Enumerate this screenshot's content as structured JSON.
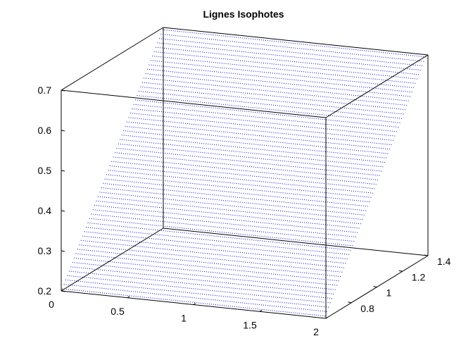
{
  "chart_data": {
    "type": "line",
    "title": "Lignes Isophotes",
    "xlabel": "",
    "ylabel": "",
    "zlabel": "",
    "xlim": [
      0,
      2
    ],
    "ylim": [
      0.6,
      1.4
    ],
    "zlim": [
      0.2,
      0.7
    ],
    "x_ticks": [
      "0",
      "0.5",
      "1",
      "1.5",
      "2"
    ],
    "y_ticks": [
      "0.8",
      "1",
      "1.2",
      "1.4"
    ],
    "z_ticks": [
      "0.2",
      "0.3",
      "0.4",
      "0.5",
      "0.6",
      "0.7"
    ],
    "x_tick_values": [
      0,
      0.5,
      1,
      1.5,
      2
    ],
    "y_tick_values": [
      0.8,
      1,
      1.2,
      1.4
    ],
    "z_tick_values": [
      0.2,
      0.3,
      0.4,
      0.5,
      0.6,
      0.7
    ],
    "grid": false,
    "box": true,
    "series": [
      {
        "color": "#0000cc",
        "line_style": "dotted",
        "contour_levels": 60,
        "surface_plane": "z varies linearly with y, constant along x",
        "z_at_y_min": 0.2,
        "z_at_y_max": 0.7
      }
    ]
  }
}
